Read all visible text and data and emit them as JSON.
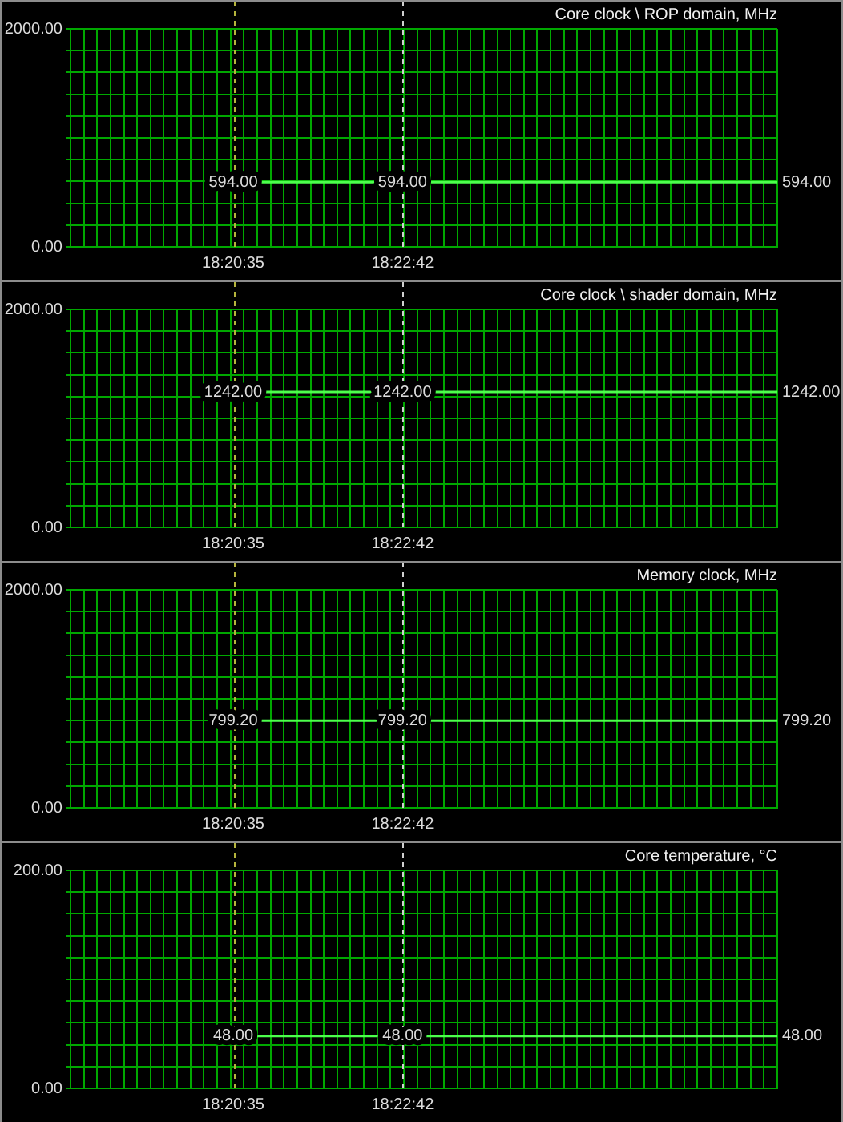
{
  "chart_data": [
    {
      "type": "line",
      "title": "Core clock \\ ROP domain, MHz",
      "x": [
        18.343056,
        18.378333,
        18.456389
      ],
      "values": [
        594,
        594,
        594
      ],
      "value_labels": [
        "594.00",
        "594.00",
        "594.00"
      ],
      "color": "#4cff4c",
      "xlim": [
        18.309167,
        18.456389
      ],
      "xticks": [
        {
          "value": 18.309167,
          "label": null
        },
        {
          "value": 18.311944,
          "label": null
        },
        {
          "value": 18.314722,
          "label": null
        },
        {
          "value": 18.3175,
          "label": null
        },
        {
          "value": 18.320278,
          "label": null
        },
        {
          "value": 18.323056,
          "label": null
        },
        {
          "value": 18.325833,
          "label": null
        },
        {
          "value": 18.328611,
          "label": null
        },
        {
          "value": 18.331389,
          "label": null
        },
        {
          "value": 18.334167,
          "label": null
        },
        {
          "value": 18.336944,
          "label": null
        },
        {
          "value": 18.339722,
          "label": null
        },
        {
          "value": 18.3425,
          "label": null
        },
        {
          "value": 18.343056,
          "label": "18:20:35"
        },
        {
          "value": 18.345278,
          "label": null
        },
        {
          "value": 18.348056,
          "label": null
        },
        {
          "value": 18.350833,
          "label": null
        },
        {
          "value": 18.353611,
          "label": null
        },
        {
          "value": 18.356389,
          "label": null
        },
        {
          "value": 18.359167,
          "label": null
        },
        {
          "value": 18.361944,
          "label": null
        },
        {
          "value": 18.364722,
          "label": null
        },
        {
          "value": 18.3675,
          "label": null
        },
        {
          "value": 18.370278,
          "label": null
        },
        {
          "value": 18.373056,
          "label": null
        },
        {
          "value": 18.375833,
          "label": null
        },
        {
          "value": 18.378333,
          "label": "18:22:42"
        },
        {
          "value": 18.378611,
          "label": null
        },
        {
          "value": 18.381389,
          "label": null
        },
        {
          "value": 18.384167,
          "label": null
        },
        {
          "value": 18.386944,
          "label": null
        },
        {
          "value": 18.389722,
          "label": null
        },
        {
          "value": 18.3925,
          "label": null
        },
        {
          "value": 18.395278,
          "label": null
        },
        {
          "value": 18.398056,
          "label": null
        },
        {
          "value": 18.400833,
          "label": null
        },
        {
          "value": 18.403611,
          "label": null
        },
        {
          "value": 18.406389,
          "label": null
        },
        {
          "value": 18.409167,
          "label": null
        },
        {
          "value": 18.411944,
          "label": null
        },
        {
          "value": 18.414722,
          "label": null
        },
        {
          "value": 18.4175,
          "label": null
        },
        {
          "value": 18.420278,
          "label": null
        },
        {
          "value": 18.423056,
          "label": null
        },
        {
          "value": 18.425833,
          "label": null
        },
        {
          "value": 18.428611,
          "label": null
        },
        {
          "value": 18.431389,
          "label": null
        },
        {
          "value": 18.434167,
          "label": null
        },
        {
          "value": 18.436944,
          "label": null
        },
        {
          "value": 18.439722,
          "label": null
        },
        {
          "value": 18.4425,
          "label": null
        },
        {
          "value": 18.445278,
          "label": null
        },
        {
          "value": 18.448056,
          "label": null
        },
        {
          "value": 18.450833,
          "label": null
        },
        {
          "value": 18.453611,
          "label": null
        },
        {
          "value": 18.456389,
          "label": null
        }
      ],
      "ylim": [
        0,
        2000
      ],
      "yticks": [
        {
          "value": 0,
          "label": "0.00"
        },
        {
          "value": 200,
          "label": null
        },
        {
          "value": 400,
          "label": null
        },
        {
          "value": 600,
          "label": null
        },
        {
          "value": 800,
          "label": null
        },
        {
          "value": 1000,
          "label": null
        },
        {
          "value": 1200,
          "label": null
        },
        {
          "value": 1400,
          "label": null
        },
        {
          "value": 1600,
          "label": null
        },
        {
          "value": 1800,
          "label": null
        },
        {
          "value": 2000,
          "label": "2000.00"
        }
      ],
      "ref_lines": [
        {
          "axis": "x",
          "value": 18.343056,
          "color": "#b4b43c",
          "line_style": "dashed"
        },
        {
          "axis": "x",
          "value": 18.378333,
          "color": "#d0d0d0",
          "line_style": "dashed"
        }
      ],
      "grid": true,
      "legend": false,
      "marker": "none",
      "line_style": "solid"
    },
    {
      "type": "line",
      "title": "Core clock \\ shader domain, MHz",
      "x": [
        18.343056,
        18.378333,
        18.456389
      ],
      "values": [
        1242,
        1242,
        1242
      ],
      "value_labels": [
        "1242.00",
        "1242.00",
        "1242.00"
      ],
      "color": "#4cff4c",
      "xlim": [
        18.309167,
        18.456389
      ],
      "xticks": [
        {
          "value": 18.309167,
          "label": null
        },
        {
          "value": 18.311944,
          "label": null
        },
        {
          "value": 18.314722,
          "label": null
        },
        {
          "value": 18.3175,
          "label": null
        },
        {
          "value": 18.320278,
          "label": null
        },
        {
          "value": 18.323056,
          "label": null
        },
        {
          "value": 18.325833,
          "label": null
        },
        {
          "value": 18.328611,
          "label": null
        },
        {
          "value": 18.331389,
          "label": null
        },
        {
          "value": 18.334167,
          "label": null
        },
        {
          "value": 18.336944,
          "label": null
        },
        {
          "value": 18.339722,
          "label": null
        },
        {
          "value": 18.3425,
          "label": null
        },
        {
          "value": 18.343056,
          "label": "18:20:35"
        },
        {
          "value": 18.345278,
          "label": null
        },
        {
          "value": 18.348056,
          "label": null
        },
        {
          "value": 18.350833,
          "label": null
        },
        {
          "value": 18.353611,
          "label": null
        },
        {
          "value": 18.356389,
          "label": null
        },
        {
          "value": 18.359167,
          "label": null
        },
        {
          "value": 18.361944,
          "label": null
        },
        {
          "value": 18.364722,
          "label": null
        },
        {
          "value": 18.3675,
          "label": null
        },
        {
          "value": 18.370278,
          "label": null
        },
        {
          "value": 18.373056,
          "label": null
        },
        {
          "value": 18.375833,
          "label": null
        },
        {
          "value": 18.378333,
          "label": "18:22:42"
        },
        {
          "value": 18.378611,
          "label": null
        },
        {
          "value": 18.381389,
          "label": null
        },
        {
          "value": 18.384167,
          "label": null
        },
        {
          "value": 18.386944,
          "label": null
        },
        {
          "value": 18.389722,
          "label": null
        },
        {
          "value": 18.3925,
          "label": null
        },
        {
          "value": 18.395278,
          "label": null
        },
        {
          "value": 18.398056,
          "label": null
        },
        {
          "value": 18.400833,
          "label": null
        },
        {
          "value": 18.403611,
          "label": null
        },
        {
          "value": 18.406389,
          "label": null
        },
        {
          "value": 18.409167,
          "label": null
        },
        {
          "value": 18.411944,
          "label": null
        },
        {
          "value": 18.414722,
          "label": null
        },
        {
          "value": 18.4175,
          "label": null
        },
        {
          "value": 18.420278,
          "label": null
        },
        {
          "value": 18.423056,
          "label": null
        },
        {
          "value": 18.425833,
          "label": null
        },
        {
          "value": 18.428611,
          "label": null
        },
        {
          "value": 18.431389,
          "label": null
        },
        {
          "value": 18.434167,
          "label": null
        },
        {
          "value": 18.436944,
          "label": null
        },
        {
          "value": 18.439722,
          "label": null
        },
        {
          "value": 18.4425,
          "label": null
        },
        {
          "value": 18.445278,
          "label": null
        },
        {
          "value": 18.448056,
          "label": null
        },
        {
          "value": 18.450833,
          "label": null
        },
        {
          "value": 18.453611,
          "label": null
        },
        {
          "value": 18.456389,
          "label": null
        }
      ],
      "ylim": [
        0,
        2000
      ],
      "yticks": [
        {
          "value": 0,
          "label": "0.00"
        },
        {
          "value": 200,
          "label": null
        },
        {
          "value": 400,
          "label": null
        },
        {
          "value": 600,
          "label": null
        },
        {
          "value": 800,
          "label": null
        },
        {
          "value": 1000,
          "label": null
        },
        {
          "value": 1200,
          "label": null
        },
        {
          "value": 1400,
          "label": null
        },
        {
          "value": 1600,
          "label": null
        },
        {
          "value": 1800,
          "label": null
        },
        {
          "value": 2000,
          "label": "2000.00"
        }
      ],
      "ref_lines": [
        {
          "axis": "x",
          "value": 18.343056,
          "color": "#b4b43c",
          "line_style": "dashed"
        },
        {
          "axis": "x",
          "value": 18.378333,
          "color": "#d0d0d0",
          "line_style": "dashed"
        }
      ],
      "grid": true,
      "legend": false,
      "marker": "none",
      "line_style": "solid"
    },
    {
      "type": "line",
      "title": "Memory clock, MHz",
      "x": [
        18.343056,
        18.378333,
        18.456389
      ],
      "values": [
        799.2,
        799.2,
        799.2
      ],
      "value_labels": [
        "799.20",
        "799.20",
        "799.20"
      ],
      "color": "#4cff4c",
      "xlim": [
        18.309167,
        18.456389
      ],
      "xticks": [
        {
          "value": 18.309167,
          "label": null
        },
        {
          "value": 18.311944,
          "label": null
        },
        {
          "value": 18.314722,
          "label": null
        },
        {
          "value": 18.3175,
          "label": null
        },
        {
          "value": 18.320278,
          "label": null
        },
        {
          "value": 18.323056,
          "label": null
        },
        {
          "value": 18.325833,
          "label": null
        },
        {
          "value": 18.328611,
          "label": null
        },
        {
          "value": 18.331389,
          "label": null
        },
        {
          "value": 18.334167,
          "label": null
        },
        {
          "value": 18.336944,
          "label": null
        },
        {
          "value": 18.339722,
          "label": null
        },
        {
          "value": 18.3425,
          "label": null
        },
        {
          "value": 18.343056,
          "label": "18:20:35"
        },
        {
          "value": 18.345278,
          "label": null
        },
        {
          "value": 18.348056,
          "label": null
        },
        {
          "value": 18.350833,
          "label": null
        },
        {
          "value": 18.353611,
          "label": null
        },
        {
          "value": 18.356389,
          "label": null
        },
        {
          "value": 18.359167,
          "label": null
        },
        {
          "value": 18.361944,
          "label": null
        },
        {
          "value": 18.364722,
          "label": null
        },
        {
          "value": 18.3675,
          "label": null
        },
        {
          "value": 18.370278,
          "label": null
        },
        {
          "value": 18.373056,
          "label": null
        },
        {
          "value": 18.375833,
          "label": null
        },
        {
          "value": 18.378333,
          "label": "18:22:42"
        },
        {
          "value": 18.378611,
          "label": null
        },
        {
          "value": 18.381389,
          "label": null
        },
        {
          "value": 18.384167,
          "label": null
        },
        {
          "value": 18.386944,
          "label": null
        },
        {
          "value": 18.389722,
          "label": null
        },
        {
          "value": 18.3925,
          "label": null
        },
        {
          "value": 18.395278,
          "label": null
        },
        {
          "value": 18.398056,
          "label": null
        },
        {
          "value": 18.400833,
          "label": null
        },
        {
          "value": 18.403611,
          "label": null
        },
        {
          "value": 18.406389,
          "label": null
        },
        {
          "value": 18.409167,
          "label": null
        },
        {
          "value": 18.411944,
          "label": null
        },
        {
          "value": 18.414722,
          "label": null
        },
        {
          "value": 18.4175,
          "label": null
        },
        {
          "value": 18.420278,
          "label": null
        },
        {
          "value": 18.423056,
          "label": null
        },
        {
          "value": 18.425833,
          "label": null
        },
        {
          "value": 18.428611,
          "label": null
        },
        {
          "value": 18.431389,
          "label": null
        },
        {
          "value": 18.434167,
          "label": null
        },
        {
          "value": 18.436944,
          "label": null
        },
        {
          "value": 18.439722,
          "label": null
        },
        {
          "value": 18.4425,
          "label": null
        },
        {
          "value": 18.445278,
          "label": null
        },
        {
          "value": 18.448056,
          "label": null
        },
        {
          "value": 18.450833,
          "label": null
        },
        {
          "value": 18.453611,
          "label": null
        },
        {
          "value": 18.456389,
          "label": null
        }
      ],
      "ylim": [
        0,
        2000
      ],
      "yticks": [
        {
          "value": 0,
          "label": "0.00"
        },
        {
          "value": 200,
          "label": null
        },
        {
          "value": 400,
          "label": null
        },
        {
          "value": 600,
          "label": null
        },
        {
          "value": 800,
          "label": null
        },
        {
          "value": 1000,
          "label": null
        },
        {
          "value": 1200,
          "label": null
        },
        {
          "value": 1400,
          "label": null
        },
        {
          "value": 1600,
          "label": null
        },
        {
          "value": 1800,
          "label": null
        },
        {
          "value": 2000,
          "label": "2000.00"
        }
      ],
      "ref_lines": [
        {
          "axis": "x",
          "value": 18.343056,
          "color": "#b4b43c",
          "line_style": "dashed"
        },
        {
          "axis": "x",
          "value": 18.378333,
          "color": "#d0d0d0",
          "line_style": "dashed"
        }
      ],
      "grid": true,
      "legend": false,
      "marker": "none",
      "line_style": "solid"
    },
    {
      "type": "line",
      "title": "Core temperature, °C",
      "x": [
        18.343056,
        18.378333,
        18.456389
      ],
      "values": [
        48,
        48,
        48
      ],
      "value_labels": [
        "48.00",
        "48.00",
        "48.00"
      ],
      "color": "#4cff4c",
      "xlim": [
        18.309167,
        18.456389
      ],
      "xticks": [
        {
          "value": 18.309167,
          "label": null
        },
        {
          "value": 18.311944,
          "label": null
        },
        {
          "value": 18.314722,
          "label": null
        },
        {
          "value": 18.3175,
          "label": null
        },
        {
          "value": 18.320278,
          "label": null
        },
        {
          "value": 18.323056,
          "label": null
        },
        {
          "value": 18.325833,
          "label": null
        },
        {
          "value": 18.328611,
          "label": null
        },
        {
          "value": 18.331389,
          "label": null
        },
        {
          "value": 18.334167,
          "label": null
        },
        {
          "value": 18.336944,
          "label": null
        },
        {
          "value": 18.339722,
          "label": null
        },
        {
          "value": 18.3425,
          "label": null
        },
        {
          "value": 18.343056,
          "label": "18:20:35"
        },
        {
          "value": 18.345278,
          "label": null
        },
        {
          "value": 18.348056,
          "label": null
        },
        {
          "value": 18.350833,
          "label": null
        },
        {
          "value": 18.353611,
          "label": null
        },
        {
          "value": 18.356389,
          "label": null
        },
        {
          "value": 18.359167,
          "label": null
        },
        {
          "value": 18.361944,
          "label": null
        },
        {
          "value": 18.364722,
          "label": null
        },
        {
          "value": 18.3675,
          "label": null
        },
        {
          "value": 18.370278,
          "label": null
        },
        {
          "value": 18.373056,
          "label": null
        },
        {
          "value": 18.375833,
          "label": null
        },
        {
          "value": 18.378333,
          "label": "18:22:42"
        },
        {
          "value": 18.378611,
          "label": null
        },
        {
          "value": 18.381389,
          "label": null
        },
        {
          "value": 18.384167,
          "label": null
        },
        {
          "value": 18.386944,
          "label": null
        },
        {
          "value": 18.389722,
          "label": null
        },
        {
          "value": 18.3925,
          "label": null
        },
        {
          "value": 18.395278,
          "label": null
        },
        {
          "value": 18.398056,
          "label": null
        },
        {
          "value": 18.400833,
          "label": null
        },
        {
          "value": 18.403611,
          "label": null
        },
        {
          "value": 18.406389,
          "label": null
        },
        {
          "value": 18.409167,
          "label": null
        },
        {
          "value": 18.411944,
          "label": null
        },
        {
          "value": 18.414722,
          "label": null
        },
        {
          "value": 18.4175,
          "label": null
        },
        {
          "value": 18.420278,
          "label": null
        },
        {
          "value": 18.423056,
          "label": null
        },
        {
          "value": 18.425833,
          "label": null
        },
        {
          "value": 18.428611,
          "label": null
        },
        {
          "value": 18.431389,
          "label": null
        },
        {
          "value": 18.434167,
          "label": null
        },
        {
          "value": 18.436944,
          "label": null
        },
        {
          "value": 18.439722,
          "label": null
        },
        {
          "value": 18.4425,
          "label": null
        },
        {
          "value": 18.445278,
          "label": null
        },
        {
          "value": 18.448056,
          "label": null
        },
        {
          "value": 18.450833,
          "label": null
        },
        {
          "value": 18.453611,
          "label": null
        },
        {
          "value": 18.456389,
          "label": null
        }
      ],
      "ylim": [
        0,
        200
      ],
      "yticks": [
        {
          "value": 0,
          "label": "0.00"
        },
        {
          "value": 20,
          "label": null
        },
        {
          "value": 40,
          "label": null
        },
        {
          "value": 60,
          "label": null
        },
        {
          "value": 80,
          "label": null
        },
        {
          "value": 100,
          "label": null
        },
        {
          "value": 120,
          "label": null
        },
        {
          "value": 140,
          "label": null
        },
        {
          "value": 160,
          "label": null
        },
        {
          "value": 180,
          "label": null
        },
        {
          "value": 200,
          "label": "200.00"
        }
      ],
      "ref_lines": [
        {
          "axis": "x",
          "value": 18.343056,
          "color": "#b4b43c",
          "line_style": "dashed"
        },
        {
          "axis": "x",
          "value": 18.378333,
          "color": "#d0d0d0",
          "line_style": "dashed"
        }
      ],
      "grid": true,
      "legend": false,
      "marker": "none",
      "line_style": "solid"
    }
  ]
}
